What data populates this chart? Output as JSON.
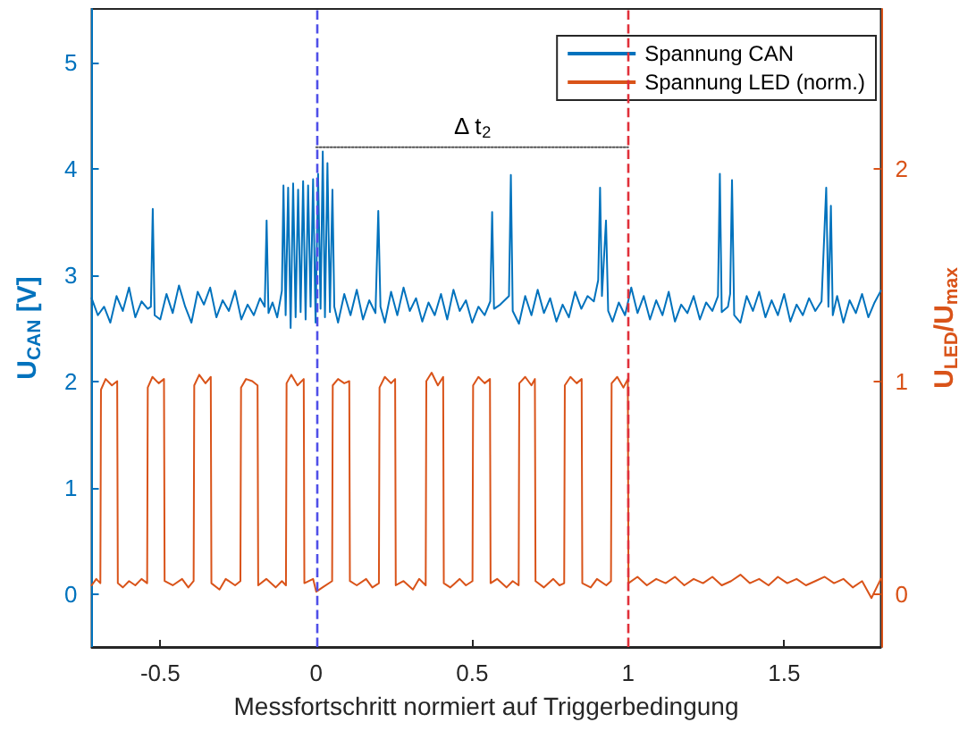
{
  "chart_data": {
    "type": "line",
    "xlabel": "Messfortschritt normiert auf Triggerbedingung",
    "ylabel": "U$_{CAN}$ [V]",
    "y2label": "U$_{LED}$/U$_{max}$",
    "xlim": [
      -0.72,
      1.81
    ],
    "xticks": [
      -0.5,
      0,
      0.5,
      1,
      1.5
    ],
    "ylim": [
      -0.5,
      5.5
    ],
    "yticks": [
      0,
      1,
      2,
      3,
      4,
      5
    ],
    "y2lim": [
      -0.25,
      2.75
    ],
    "y2ticks": [
      0,
      1,
      2
    ],
    "grid": false,
    "legend": "top right",
    "marker": "none",
    "line_style": "solid",
    "annotations": [
      {
        "text": "Δ t$_{2}$",
        "x": 0.5,
        "y": 4.2
      }
    ],
    "ref_lines": [
      {
        "axis": "x",
        "value": 0,
        "color": "#4f4fe8",
        "line_style": "dashed"
      },
      {
        "axis": "x",
        "value": 1,
        "color": "#e0303a",
        "line_style": "dashed"
      }
    ],
    "series": [
      {
        "name": "Spannung CAN",
        "color": "#0072bd",
        "x": [
          -0.72,
          -0.7,
          -0.68,
          -0.66,
          -0.64,
          -0.62,
          -0.6,
          -0.58,
          -0.56,
          -0.54,
          -0.53,
          -0.524,
          -0.518,
          -0.5,
          -0.48,
          -0.46,
          -0.44,
          -0.42,
          -0.4,
          -0.38,
          -0.36,
          -0.34,
          -0.32,
          -0.3,
          -0.28,
          -0.26,
          -0.24,
          -0.22,
          -0.2,
          -0.18,
          -0.165,
          -0.159,
          -0.153,
          -0.14,
          -0.125,
          -0.11,
          -0.105,
          -0.098,
          -0.09,
          -0.082,
          -0.074,
          -0.066,
          -0.058,
          -0.05,
          -0.042,
          -0.034,
          -0.026,
          -0.018,
          -0.01,
          -0.002,
          0.006,
          0.014,
          0.021,
          0.028,
          0.036,
          0.044,
          0.052,
          0.058,
          0.07,
          0.09,
          0.11,
          0.13,
          0.15,
          0.17,
          0.19,
          0.199,
          0.206,
          0.22,
          0.24,
          0.26,
          0.28,
          0.3,
          0.32,
          0.34,
          0.36,
          0.38,
          0.4,
          0.42,
          0.44,
          0.46,
          0.48,
          0.5,
          0.52,
          0.54,
          0.558,
          0.564,
          0.57,
          0.59,
          0.618,
          0.624,
          0.63,
          0.65,
          0.67,
          0.69,
          0.71,
          0.73,
          0.75,
          0.77,
          0.79,
          0.81,
          0.83,
          0.85,
          0.87,
          0.89,
          0.904,
          0.91,
          0.916,
          0.929,
          0.936,
          0.95,
          0.97,
          0.99,
          1.01,
          1.03,
          1.05,
          1.07,
          1.09,
          1.11,
          1.13,
          1.15,
          1.17,
          1.19,
          1.21,
          1.23,
          1.25,
          1.27,
          1.288,
          1.294,
          1.3,
          1.32,
          1.327,
          1.333,
          1.34,
          1.36,
          1.38,
          1.4,
          1.42,
          1.44,
          1.46,
          1.48,
          1.5,
          1.52,
          1.54,
          1.56,
          1.58,
          1.6,
          1.62,
          1.635,
          1.642,
          1.65,
          1.656,
          1.67,
          1.69,
          1.71,
          1.73,
          1.75,
          1.77,
          1.79,
          1.81
        ],
        "values": [
          2.78,
          2.62,
          2.7,
          2.55,
          2.8,
          2.66,
          2.88,
          2.6,
          2.75,
          2.68,
          2.7,
          3.62,
          2.62,
          2.58,
          2.82,
          2.64,
          2.9,
          2.7,
          2.55,
          2.84,
          2.72,
          2.88,
          2.6,
          2.76,
          2.66,
          2.85,
          2.58,
          2.72,
          2.62,
          2.78,
          2.7,
          3.51,
          2.64,
          2.74,
          2.6,
          2.85,
          3.84,
          2.62,
          3.82,
          2.5,
          3.86,
          2.6,
          3.8,
          2.65,
          3.88,
          2.58,
          3.84,
          2.7,
          3.9,
          2.55,
          3.95,
          2.68,
          4.16,
          2.6,
          4.05,
          2.65,
          3.8,
          2.7,
          2.55,
          2.82,
          2.62,
          2.86,
          2.58,
          2.76,
          2.64,
          3.6,
          2.7,
          2.55,
          2.84,
          2.62,
          2.88,
          2.66,
          2.78,
          2.56,
          2.74,
          2.62,
          2.82,
          2.58,
          2.86,
          2.66,
          2.76,
          2.55,
          2.7,
          2.62,
          2.75,
          3.59,
          2.68,
          2.72,
          2.8,
          3.94,
          2.66,
          2.54,
          2.8,
          2.62,
          2.86,
          2.64,
          2.78,
          2.56,
          2.72,
          2.6,
          2.84,
          2.68,
          2.8,
          2.75,
          2.95,
          3.82,
          2.8,
          3.51,
          2.66,
          2.56,
          2.74,
          2.62,
          2.88,
          2.64,
          2.8,
          2.58,
          2.76,
          2.62,
          2.84,
          2.56,
          2.72,
          2.64,
          2.8,
          2.58,
          2.74,
          2.66,
          2.8,
          3.95,
          2.65,
          2.7,
          2.82,
          3.89,
          2.62,
          2.55,
          2.8,
          2.66,
          2.84,
          2.6,
          2.76,
          2.62,
          2.82,
          2.56,
          2.72,
          2.62,
          2.78,
          2.66,
          2.75,
          3.82,
          2.7,
          3.65,
          2.62,
          2.8,
          2.55,
          2.76,
          2.64,
          2.82,
          2.6,
          2.74,
          2.85
        ]
      },
      {
        "name": "Spannung LED (norm.)",
        "color": "#d95319",
        "axis": "y2",
        "x": [
          -0.72,
          -0.705,
          -0.692,
          -0.69,
          -0.675,
          -0.655,
          -0.638,
          -0.636,
          -0.62,
          -0.6,
          -0.58,
          -0.56,
          -0.542,
          -0.54,
          -0.525,
          -0.505,
          -0.488,
          -0.486,
          -0.46,
          -0.43,
          -0.41,
          -0.393,
          -0.391,
          -0.375,
          -0.355,
          -0.338,
          -0.336,
          -0.31,
          -0.29,
          -0.26,
          -0.243,
          -0.241,
          -0.225,
          -0.205,
          -0.188,
          -0.186,
          -0.16,
          -0.13,
          -0.11,
          -0.097,
          -0.095,
          -0.08,
          -0.06,
          -0.04,
          -0.038,
          -0.01,
          0.0,
          0.02,
          0.051,
          0.053,
          0.07,
          0.09,
          0.106,
          0.108,
          0.13,
          0.16,
          0.18,
          0.201,
          0.203,
          0.22,
          0.24,
          0.253,
          0.255,
          0.28,
          0.31,
          0.33,
          0.351,
          0.353,
          0.37,
          0.39,
          0.407,
          0.409,
          0.43,
          0.46,
          0.48,
          0.501,
          0.503,
          0.52,
          0.54,
          0.557,
          0.559,
          0.58,
          0.61,
          0.63,
          0.649,
          0.651,
          0.67,
          0.69,
          0.701,
          0.703,
          0.73,
          0.76,
          0.78,
          0.795,
          0.797,
          0.815,
          0.835,
          0.851,
          0.853,
          0.88,
          0.9,
          0.93,
          0.945,
          0.947,
          0.965,
          0.985,
          0.999,
          1.001,
          1.03,
          1.06,
          1.09,
          1.12,
          1.15,
          1.18,
          1.21,
          1.24,
          1.27,
          1.3,
          1.33,
          1.36,
          1.39,
          1.42,
          1.45,
          1.48,
          1.51,
          1.54,
          1.57,
          1.6,
          1.63,
          1.66,
          1.69,
          1.72,
          1.75,
          1.78,
          1.81
        ],
        "values": [
          0.04,
          0.07,
          0.05,
          0.96,
          1.01,
          0.98,
          1.0,
          0.05,
          0.03,
          0.06,
          0.04,
          0.07,
          0.05,
          0.97,
          1.02,
          0.99,
          1.01,
          0.06,
          0.04,
          0.07,
          0.03,
          0.06,
          0.98,
          1.03,
          0.99,
          1.02,
          0.05,
          0.02,
          0.07,
          0.04,
          0.06,
          0.97,
          1.01,
          1.0,
          0.98,
          0.04,
          0.07,
          0.03,
          0.06,
          0.04,
          0.99,
          1.03,
          0.98,
          1.01,
          0.05,
          0.07,
          0.01,
          0.03,
          0.06,
          0.98,
          1.01,
          0.99,
          1.0,
          0.06,
          0.04,
          0.07,
          0.03,
          0.05,
          0.97,
          1.02,
          0.99,
          1.01,
          0.04,
          0.06,
          0.02,
          0.07,
          0.04,
          1.0,
          1.04,
          0.98,
          1.02,
          0.05,
          0.03,
          0.07,
          0.04,
          0.06,
          0.98,
          1.02,
          0.99,
          1.01,
          0.05,
          0.07,
          0.03,
          0.06,
          0.04,
          0.99,
          1.02,
          0.98,
          1.01,
          0.06,
          0.03,
          0.07,
          0.04,
          0.05,
          0.98,
          1.02,
          0.99,
          1.01,
          0.05,
          0.03,
          0.07,
          0.04,
          0.06,
          0.99,
          1.02,
          0.97,
          1.01,
          0.05,
          0.08,
          0.04,
          0.07,
          0.05,
          0.08,
          0.04,
          0.07,
          0.05,
          0.08,
          0.04,
          0.06,
          0.09,
          0.05,
          0.07,
          0.04,
          0.08,
          0.05,
          0.07,
          0.04,
          0.06,
          0.08,
          0.05,
          0.07,
          0.03,
          0.06,
          -0.02,
          0.07
        ]
      },
      {
        "color": "#555555",
        "line_style": "dotted",
        "x": [
          0,
          1
        ],
        "values": [
          4.2,
          4.2
        ]
      }
    ]
  }
}
